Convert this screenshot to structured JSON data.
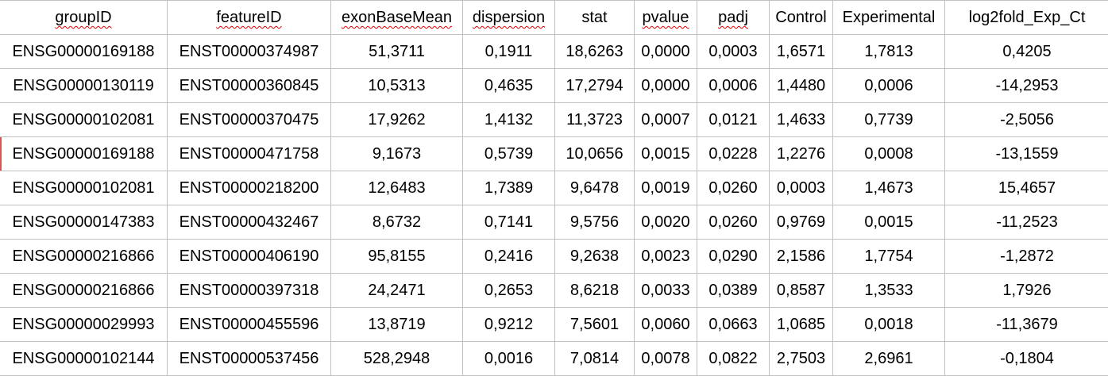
{
  "table": {
    "columns": [
      {
        "label": "groupID",
        "spell": true
      },
      {
        "label": "featureID",
        "spell": true
      },
      {
        "label": "exonBaseMean",
        "spell": true
      },
      {
        "label": "dispersion",
        "spell": true
      },
      {
        "label": "stat",
        "spell": false
      },
      {
        "label": "pvalue",
        "spell": true
      },
      {
        "label": "padj",
        "spell": true
      },
      {
        "label": "Control",
        "spell": false
      },
      {
        "label": "Experimental",
        "spell": false
      },
      {
        "label": "log2fold_Exp_Ct",
        "spell": false
      }
    ],
    "rows": [
      [
        "ENSG00000169188",
        "ENST00000374987",
        "51,3711",
        "0,1911",
        "18,6263",
        "0,0000",
        "0,0003",
        "1,6571",
        "1,7813",
        "0,4205"
      ],
      [
        "ENSG00000130119",
        "ENST00000360845",
        "10,5313",
        "0,4635",
        "17,2794",
        "0,0000",
        "0,0006",
        "1,4480",
        "0,0006",
        "-14,2953"
      ],
      [
        "ENSG00000102081",
        "ENST00000370475",
        "17,9262",
        "1,4132",
        "11,3723",
        "0,0007",
        "0,0121",
        "1,4633",
        "0,7739",
        "-2,5056"
      ],
      [
        "ENSG00000169188",
        "ENST00000471758",
        "9,1673",
        "0,5739",
        "10,0656",
        "0,0015",
        "0,0228",
        "1,2276",
        "0,0008",
        "-13,1559"
      ],
      [
        "ENSG00000102081",
        "ENST00000218200",
        "12,6483",
        "1,7389",
        "9,6478",
        "0,0019",
        "0,0260",
        "0,0003",
        "1,4673",
        "15,4657"
      ],
      [
        "ENSG00000147383",
        "ENST00000432467",
        "8,6732",
        "0,7141",
        "9,5756",
        "0,0020",
        "0,0260",
        "0,9769",
        "0,0015",
        "-11,2523"
      ],
      [
        "ENSG00000216866",
        "ENST00000406190",
        "95,8155",
        "0,2416",
        "9,2638",
        "0,0023",
        "0,0290",
        "2,1586",
        "1,7754",
        "-1,2872"
      ],
      [
        "ENSG00000216866",
        "ENST00000397318",
        "24,2471",
        "0,2653",
        "8,6218",
        "0,0033",
        "0,0389",
        "0,8587",
        "1,3533",
        "1,7926"
      ],
      [
        "ENSG00000029993",
        "ENST00000455596",
        "13,8719",
        "0,9212",
        "7,5601",
        "0,0060",
        "0,0663",
        "1,0685",
        "0,0018",
        "-11,3679"
      ],
      [
        "ENSG00000102144",
        "ENST00000537456",
        "528,2948",
        "0,0016",
        "7,0814",
        "0,0078",
        "0,0822",
        "2,7503",
        "2,6961",
        "-0,1804"
      ]
    ]
  },
  "colors": {
    "grid_line": "#c0c0c0",
    "spellcheck_underline": "#e00000",
    "text": "#000000"
  }
}
